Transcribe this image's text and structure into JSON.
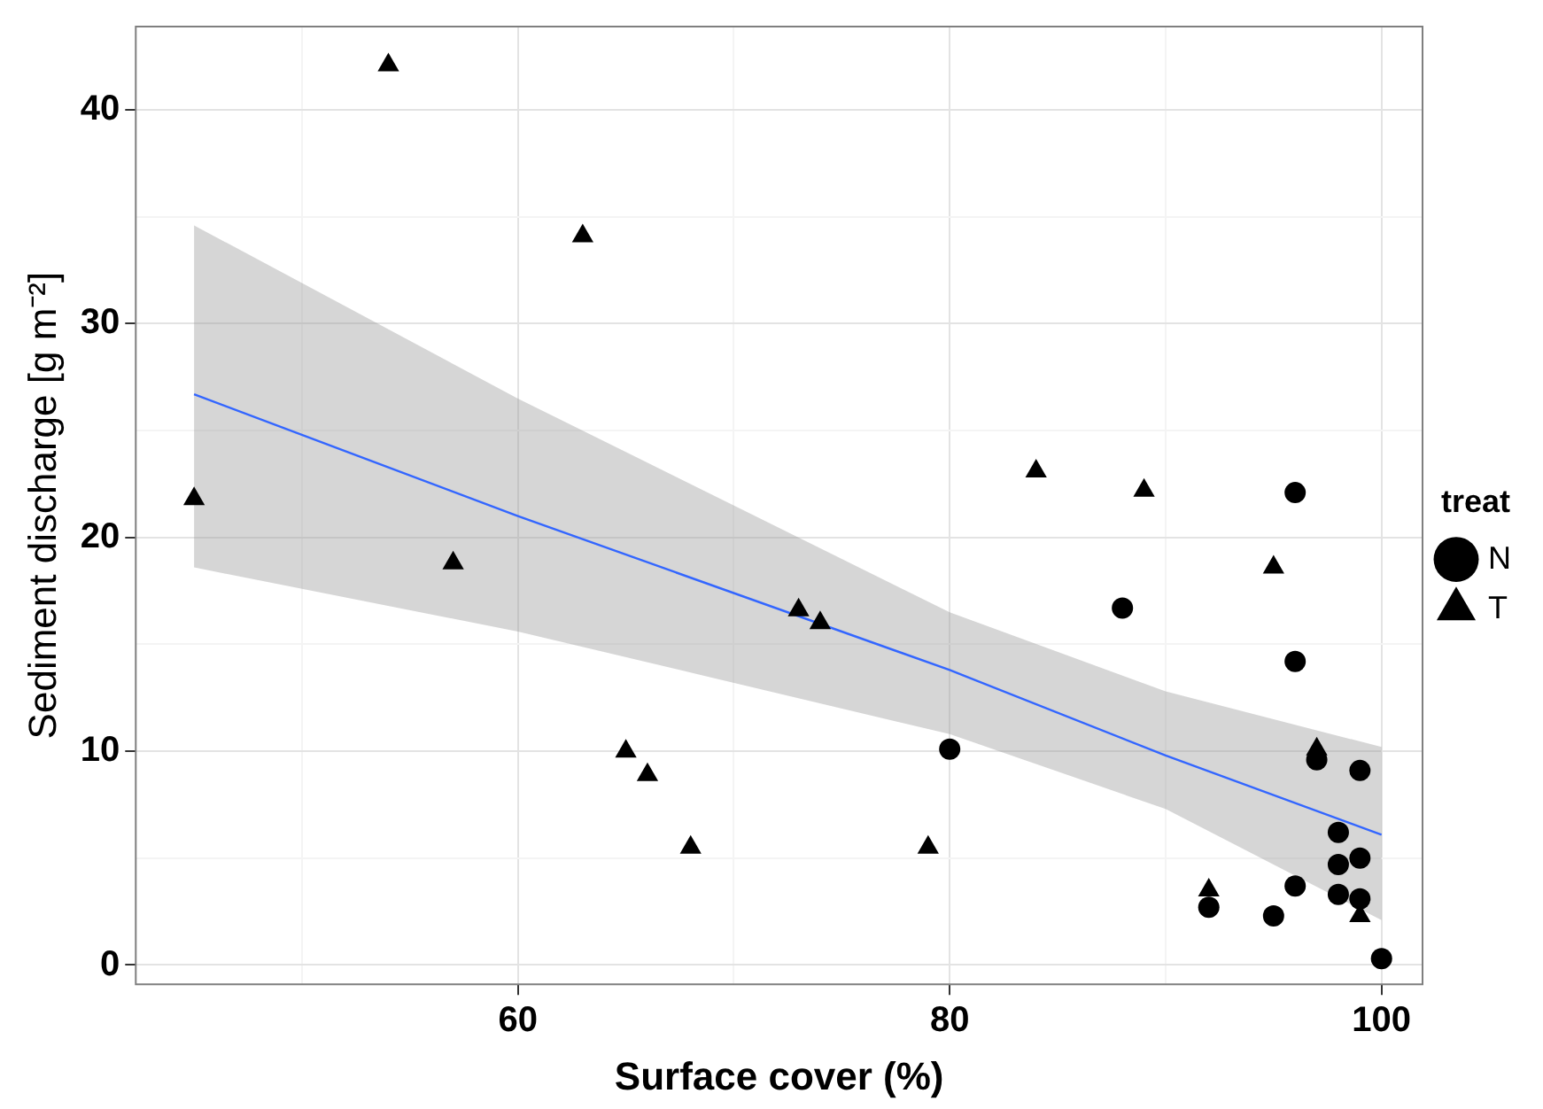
{
  "chart_data": {
    "type": "scatter",
    "xlabel": "Surface cover (%)",
    "ylabel": "Sediment discharge [g m⁻²]",
    "legend_title": "treat",
    "legend": "right",
    "grid": true,
    "xlim": [
      42.3,
      101.9
    ],
    "ylim": [
      -0.9,
      43.9
    ],
    "xticks": [
      {
        "value": 50,
        "label": null
      },
      60,
      {
        "value": 70,
        "label": null
      },
      80,
      {
        "value": 90,
        "label": null
      },
      100
    ],
    "yticks": [
      0,
      {
        "value": 5,
        "label": null
      },
      10,
      {
        "value": 15,
        "label": null
      },
      20,
      {
        "value": 25,
        "label": null
      },
      30,
      {
        "value": 35,
        "label": null
      },
      40
    ],
    "series": [
      {
        "name": "N",
        "color": "#000000",
        "marker": "circle",
        "x": [
          80,
          88,
          96,
          96,
          97,
          99,
          98,
          98,
          99,
          98,
          99,
          96,
          92,
          95,
          100
        ],
        "values": [
          10.1,
          16.7,
          22.1,
          14.2,
          9.6,
          9.1,
          6.2,
          4.7,
          5.0,
          3.3,
          3.1,
          3.7,
          2.7,
          2.3,
          0.3
        ]
      },
      {
        "name": "T",
        "color": "#000000",
        "marker": "triangle",
        "x": [
          45,
          54,
          57,
          63,
          65,
          66,
          68,
          73,
          74,
          79,
          84,
          89,
          95,
          97,
          92,
          99
        ],
        "values": [
          21.8,
          42.1,
          18.8,
          34.1,
          10,
          8.9,
          5.5,
          16.6,
          16,
          5.5,
          23.1,
          22.2,
          18.6,
          10.1,
          3.5,
          2.3
        ]
      },
      {
        "type": "line",
        "color": "#3366ff",
        "marker": "none",
        "x": [
          45,
          60,
          80,
          90,
          100
        ],
        "values": [
          26.7,
          21.0,
          13.8,
          9.8,
          6.1
        ],
        "lower": [
          18.6,
          15.6,
          10.8,
          7.3,
          2.1
        ],
        "upper": [
          34.6,
          26.5,
          16.5,
          12.8,
          10.2
        ]
      }
    ]
  }
}
